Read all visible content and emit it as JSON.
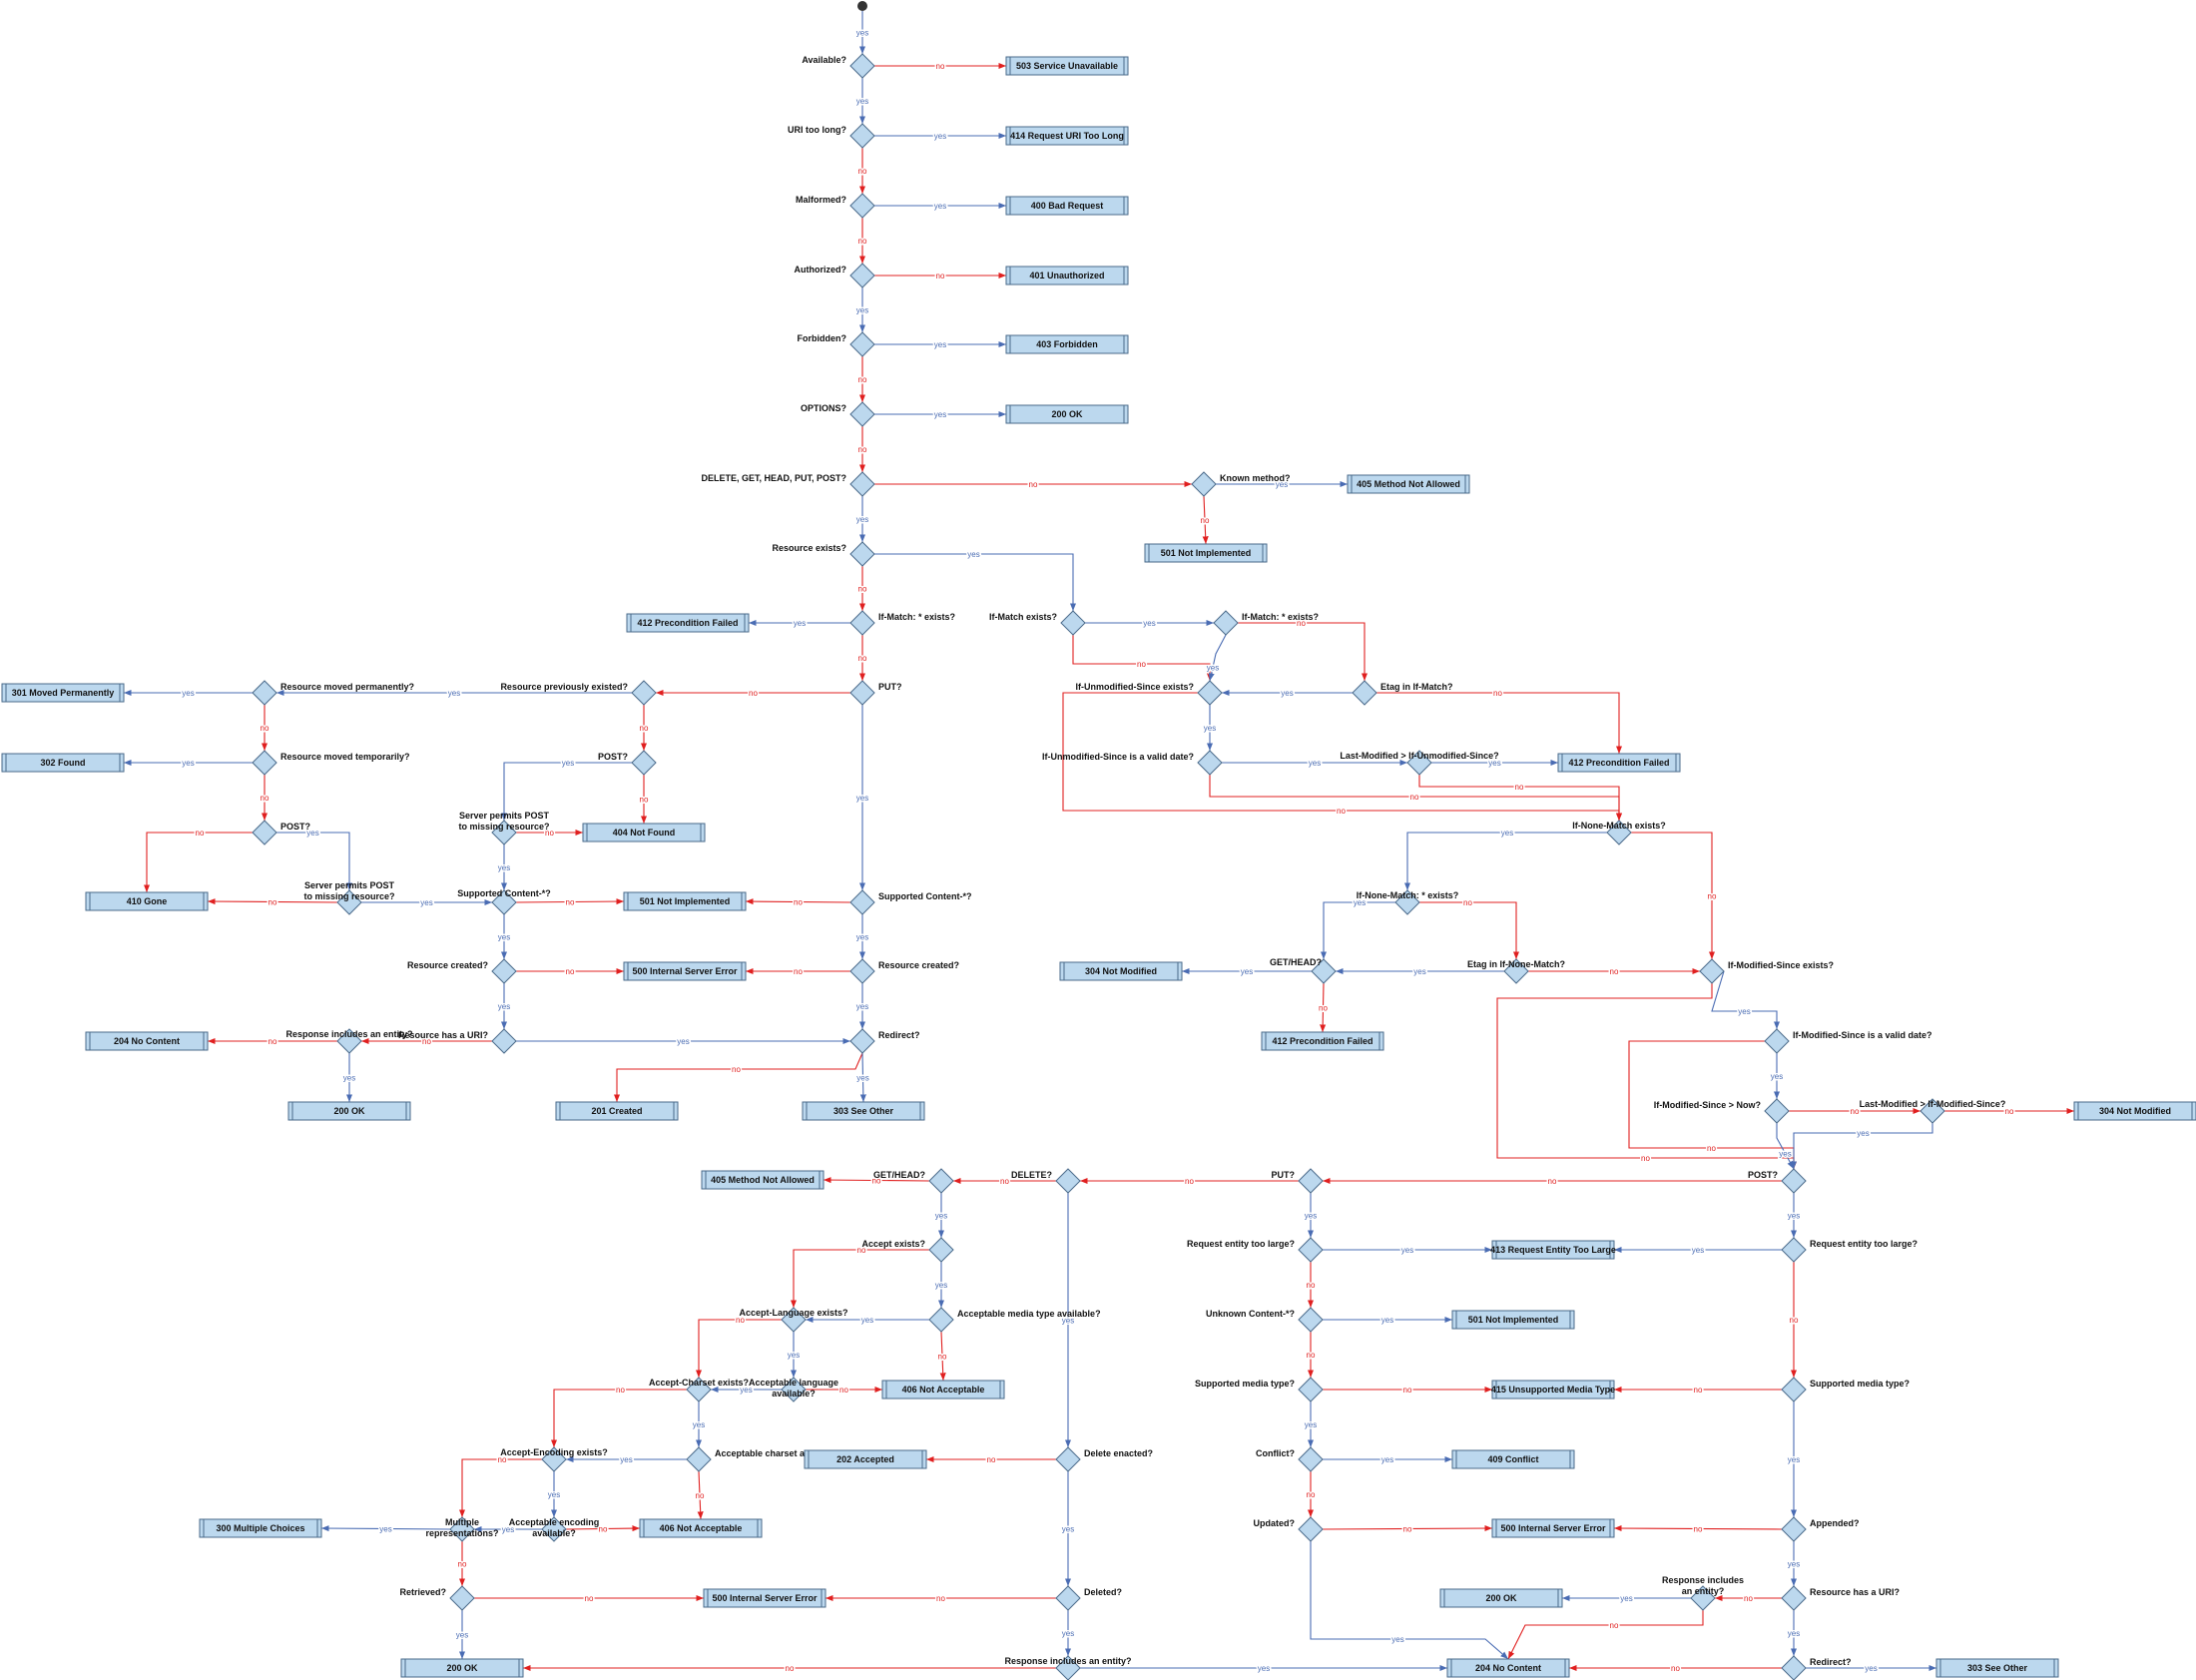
{
  "colors": {
    "box_fill": "#bcd8ee",
    "box_stroke": "#4a6a8a",
    "yes_edge": "#4a6cb3",
    "no_edge": "#e02020",
    "start": "#333333"
  },
  "decisions": [
    {
      "id": "d_avail",
      "label": "Available?"
    },
    {
      "id": "d_uri",
      "label": "URI too long?"
    },
    {
      "id": "d_malf",
      "label": "Malformed?"
    },
    {
      "id": "d_auth",
      "label": "Authorized?"
    },
    {
      "id": "d_forb",
      "label": "Forbidden?"
    },
    {
      "id": "d_opt",
      "label": "OPTIONS?"
    },
    {
      "id": "d_meth",
      "label": "DELETE, GET, HEAD, PUT, POST?"
    },
    {
      "id": "d_known",
      "label": "Known method?"
    },
    {
      "id": "d_resex",
      "label": "Resource exists?"
    },
    {
      "id": "d_ifm_star",
      "label": "If-Match: * exists?"
    },
    {
      "id": "d_put_a",
      "label": "PUT?"
    },
    {
      "id": "d_prevex",
      "label": "Resource previously existed?"
    },
    {
      "id": "d_movperm",
      "label": "Resource moved permanently?"
    },
    {
      "id": "d_movtemp",
      "label": "Resource moved temporarily?"
    },
    {
      "id": "d_post_a",
      "label": "POST?"
    },
    {
      "id": "d_post_b",
      "label": "POST?"
    },
    {
      "id": "d_perm1",
      "label": "Server permits POST\nto missing resource?"
    },
    {
      "id": "d_perm2",
      "label": "Server permits POST\nto missing resource?"
    },
    {
      "id": "d_supc1",
      "label": "Supported Content-*?"
    },
    {
      "id": "d_supc2",
      "label": "Supported Content-*?"
    },
    {
      "id": "d_created1",
      "label": "Resource created?"
    },
    {
      "id": "d_created2",
      "label": "Resource created?"
    },
    {
      "id": "d_hasuri1",
      "label": "Resource has a URI?"
    },
    {
      "id": "d_redir1",
      "label": "Redirect?"
    },
    {
      "id": "d_respent1",
      "label": "Response includes an entity?"
    },
    {
      "id": "d_ifm_ex",
      "label": "If-Match exists?"
    },
    {
      "id": "d_ifm_star2",
      "label": "If-Match: * exists?"
    },
    {
      "id": "d_etag_ifm",
      "label": "Etag in If-Match?"
    },
    {
      "id": "d_ius_ex",
      "label": "If-Unmodified-Since exists?"
    },
    {
      "id": "d_ius_valid",
      "label": "If-Unmodified-Since is a valid date?"
    },
    {
      "id": "d_lm_ius",
      "label": "Last-Modified > If-Unmodified-Since?"
    },
    {
      "id": "d_inm_ex",
      "label": "If-None-Match exists?"
    },
    {
      "id": "d_inm_star",
      "label": "If-None-Match: * exists?"
    },
    {
      "id": "d_gethead1",
      "label": "GET/HEAD?"
    },
    {
      "id": "d_etag_inm",
      "label": "Etag in If-None-Match?"
    },
    {
      "id": "d_ims_ex",
      "label": "If-Modified-Since exists?"
    },
    {
      "id": "d_ims_valid",
      "label": "If-Modified-Since is a valid date?"
    },
    {
      "id": "d_ims_now",
      "label": "If-Modified-Since > Now?"
    },
    {
      "id": "d_lm_ims",
      "label": "Last-Modified > If-Modified-Since?"
    },
    {
      "id": "d_post_c",
      "label": "POST?"
    },
    {
      "id": "d_put_c",
      "label": "PUT?"
    },
    {
      "id": "d_delete",
      "label": "DELETE?"
    },
    {
      "id": "d_gethead2",
      "label": "GET/HEAD?"
    },
    {
      "id": "d_accept",
      "label": "Accept exists?"
    },
    {
      "id": "d_acc_media",
      "label": "Acceptable media type available?"
    },
    {
      "id": "d_acc_lang_ex",
      "label": "Accept-Language exists?"
    },
    {
      "id": "d_acc_lang",
      "label": "Acceptable language\navailable?"
    },
    {
      "id": "d_acc_cs_ex",
      "label": "Accept-Charset exists?"
    },
    {
      "id": "d_acc_cs",
      "label": "Acceptable charset available?"
    },
    {
      "id": "d_acc_enc_ex",
      "label": "Accept-Encoding exists?"
    },
    {
      "id": "d_acc_enc",
      "label": "Acceptable encoding\navailable?"
    },
    {
      "id": "d_multi",
      "label": "Multiple\nrepresentations?"
    },
    {
      "id": "d_retrieved",
      "label": "Retrieved?"
    },
    {
      "id": "d_del_enacted",
      "label": "Delete enacted?"
    },
    {
      "id": "d_deleted",
      "label": "Deleted?"
    },
    {
      "id": "d_respent2",
      "label": "Response includes an entity?"
    },
    {
      "id": "d_ret_large",
      "label": "Request entity too large?"
    },
    {
      "id": "d_unk_content",
      "label": "Unknown Content-*?"
    },
    {
      "id": "d_sup_media1",
      "label": "Supported media type?"
    },
    {
      "id": "d_conflict",
      "label": "Conflict?"
    },
    {
      "id": "d_updated",
      "label": "Updated?"
    },
    {
      "id": "d_ret_large2",
      "label": "Request entity too large?"
    },
    {
      "id": "d_sup_media2",
      "label": "Supported media type?"
    },
    {
      "id": "d_appended",
      "label": "Appended?"
    },
    {
      "id": "d_hasuri2",
      "label": "Resource has a URI?"
    },
    {
      "id": "d_respent3",
      "label": "Response includes\nan entity?"
    },
    {
      "id": "d_redir2",
      "label": "Redirect?"
    }
  ],
  "results": [
    {
      "id": "r503",
      "label": "503 Service Unavailable"
    },
    {
      "id": "r414",
      "label": "414 Request URI Too Long"
    },
    {
      "id": "r400",
      "label": "400 Bad Request"
    },
    {
      "id": "r401",
      "label": "401 Unauthorized"
    },
    {
      "id": "r403",
      "label": "403 Forbidden"
    },
    {
      "id": "r200opt",
      "label": "200 OK"
    },
    {
      "id": "r405a",
      "label": "405 Method Not Allowed"
    },
    {
      "id": "r501a",
      "label": "501 Not Implemented"
    },
    {
      "id": "r412a",
      "label": "412 Precondition Failed"
    },
    {
      "id": "r301",
      "label": "301 Moved Permanently"
    },
    {
      "id": "r302",
      "label": "302 Found"
    },
    {
      "id": "r404",
      "label": "404 Not Found"
    },
    {
      "id": "r410",
      "label": "410 Gone"
    },
    {
      "id": "r501b",
      "label": "501 Not Implemented"
    },
    {
      "id": "r500a",
      "label": "500 Internal Server Error"
    },
    {
      "id": "r204a",
      "label": "204 No Content"
    },
    {
      "id": "r200a",
      "label": "200 OK"
    },
    {
      "id": "r201",
      "label": "201 Created"
    },
    {
      "id": "r303a",
      "label": "303 See Other"
    },
    {
      "id": "r412b",
      "label": "412 Precondition Failed"
    },
    {
      "id": "r304a",
      "label": "304 Not Modified"
    },
    {
      "id": "r412c",
      "label": "412 Precondition Failed"
    },
    {
      "id": "r304b",
      "label": "304 Not Modified"
    },
    {
      "id": "r405b",
      "label": "405 Method Not Allowed"
    },
    {
      "id": "r406a",
      "label": "406 Not Acceptable"
    },
    {
      "id": "r406b",
      "label": "406 Not Acceptable"
    },
    {
      "id": "r202",
      "label": "202 Accepted"
    },
    {
      "id": "r300",
      "label": "300 Multiple Choices"
    },
    {
      "id": "r500b",
      "label": "500 Internal Server Error"
    },
    {
      "id": "r200b",
      "label": "200 OK"
    },
    {
      "id": "r413",
      "label": "413 Request Entity Too Large"
    },
    {
      "id": "r501c",
      "label": "501 Not Implemented"
    },
    {
      "id": "r415",
      "label": "415 Unsupported Media Type"
    },
    {
      "id": "r409",
      "label": "409 Conflict"
    },
    {
      "id": "r500c",
      "label": "500 Internal Server Error"
    },
    {
      "id": "r200c",
      "label": "200 OK"
    },
    {
      "id": "r204b",
      "label": "204 No Content"
    },
    {
      "id": "r303b",
      "label": "303 See Other"
    }
  ],
  "edge_labels": {
    "yes": "yes",
    "no": "no"
  }
}
